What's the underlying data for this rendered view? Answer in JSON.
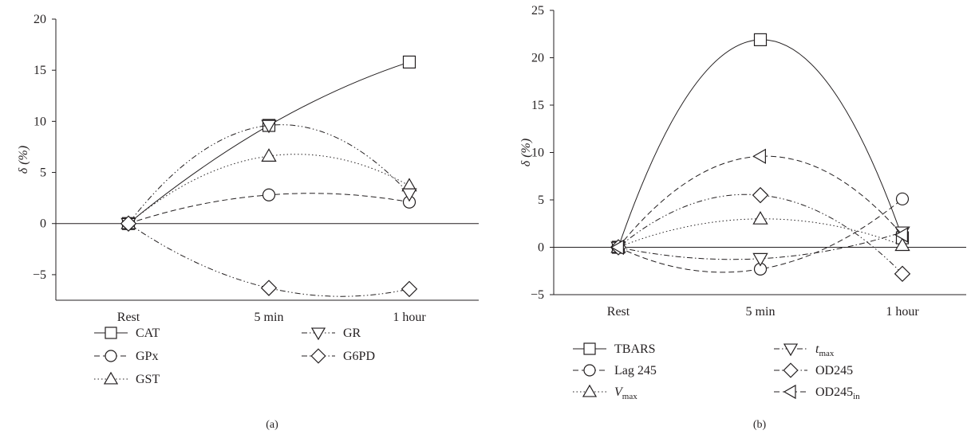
{
  "chart_data": [
    {
      "type": "line",
      "panel": "(a)",
      "categories": [
        "Rest",
        "5 min",
        "1 hour"
      ],
      "ylabel": "δ (%)",
      "ylim": [
        -7.5,
        20
      ],
      "yticks": [
        {
          "v": -5,
          "label": "−5"
        },
        {
          "v": 0,
          "label": "0"
        },
        {
          "v": 5,
          "label": "5"
        },
        {
          "v": 10,
          "label": "10"
        },
        {
          "v": 15,
          "label": "15"
        },
        {
          "v": 20,
          "label": "20"
        }
      ],
      "series": [
        {
          "name": "CAT",
          "marker": "square",
          "dash": "solid",
          "values": [
            0,
            9.6,
            15.8
          ]
        },
        {
          "name": "GPx",
          "marker": "circle",
          "dash": "dashed",
          "values": [
            0,
            2.8,
            2.1
          ]
        },
        {
          "name": "GST",
          "marker": "triangle-up",
          "dash": "dotted",
          "values": [
            0,
            6.6,
            3.7
          ]
        },
        {
          "name": "GR",
          "marker": "triangle-down",
          "dash": "dash-dot-dot",
          "values": [
            0,
            9.6,
            2.9
          ]
        },
        {
          "name": "G6PD",
          "marker": "diamond",
          "dash": "dash-dot-dot",
          "values": [
            0,
            -6.3,
            -6.4
          ]
        }
      ]
    },
    {
      "type": "line",
      "panel": "(b)",
      "categories": [
        "Rest",
        "5 min",
        "1 hour"
      ],
      "ylabel": "δ (%)",
      "ylim": [
        -5,
        25
      ],
      "yticks": [
        {
          "v": -5,
          "label": "−5"
        },
        {
          "v": 0,
          "label": "0"
        },
        {
          "v": 5,
          "label": "5"
        },
        {
          "v": 10,
          "label": "10"
        },
        {
          "v": 15,
          "label": "15"
        },
        {
          "v": 20,
          "label": "20"
        },
        {
          "v": 25,
          "label": "25"
        }
      ],
      "series": [
        {
          "name": "TBARS",
          "marker": "square",
          "dash": "solid",
          "values": [
            0,
            21.9,
            1.0
          ]
        },
        {
          "name": "Lag 245",
          "marker": "circle",
          "dash": "dashed",
          "values": [
            0,
            -2.3,
            5.1
          ]
        },
        {
          "name": "V",
          "sub": "max",
          "italic": true,
          "marker": "triangle-up",
          "dash": "dotted",
          "values": [
            0,
            3.0,
            0.2
          ]
        },
        {
          "name": "t",
          "sub": "max",
          "italic": true,
          "marker": "triangle-down",
          "dash": "dash-dot",
          "values": [
            0,
            -1.2,
            1.6
          ]
        },
        {
          "name": "OD245",
          "marker": "diamond",
          "dash": "dash-dot-dot",
          "values": [
            0,
            5.5,
            -2.8
          ]
        },
        {
          "name": "OD245",
          "sub": "in",
          "marker": "triangle-left",
          "dash": "dashed",
          "values": [
            0,
            9.6,
            1.3
          ]
        }
      ]
    }
  ]
}
